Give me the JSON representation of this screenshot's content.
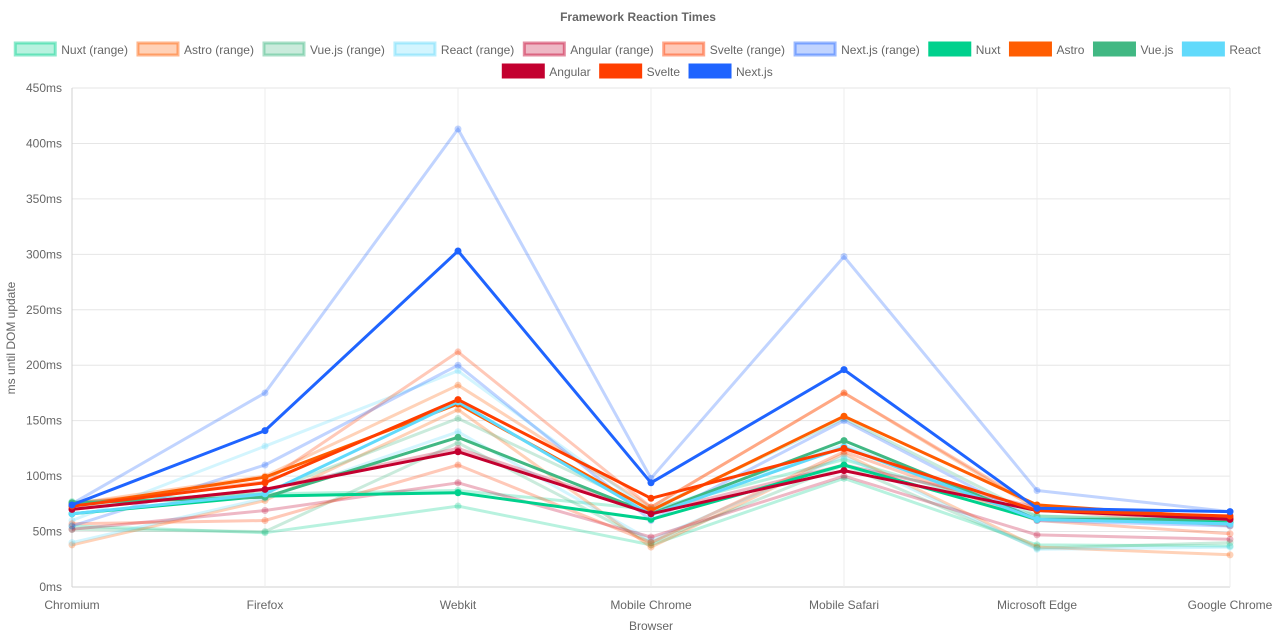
{
  "chart_data": {
    "type": "line",
    "title": "Framework Reaction Times",
    "xlabel": "Browser",
    "ylabel": "ms until DOM update",
    "ylim": [
      0,
      450
    ],
    "ytick_step": 50,
    "ytick_suffix": "ms",
    "grid": true,
    "legend_position": "top",
    "categories": [
      "Chromium",
      "Firefox",
      "Webkit",
      "Mobile Chrome",
      "Mobile Safari",
      "Microsoft Edge",
      "Google Chrome"
    ],
    "series": [
      {
        "name": "Nuxt (range)",
        "kind": "range",
        "color": "#00d18d",
        "min": [
          55,
          49,
          73,
          38,
          98,
          38,
          37
        ],
        "max": [
          77,
          84,
          87,
          70,
          115,
          64,
          58
        ]
      },
      {
        "name": "Astro (range)",
        "kind": "range",
        "color": "#ff5d01",
        "min": [
          38,
          78,
          160,
          36,
          120,
          36,
          29
        ],
        "max": [
          75,
          100,
          182,
          72,
          175,
          70,
          55
        ]
      },
      {
        "name": "Vue.js (range)",
        "kind": "range",
        "color": "#41b883",
        "min": [
          52,
          50,
          130,
          40,
          110,
          35,
          40
        ],
        "max": [
          73,
          85,
          152,
          70,
          152,
          64,
          60
        ]
      },
      {
        "name": "React (range)",
        "kind": "range",
        "color": "#61dafb",
        "min": [
          40,
          80,
          140,
          42,
          118,
          34,
          36
        ],
        "max": [
          60,
          127,
          195,
          68,
          128,
          62,
          56
        ]
      },
      {
        "name": "Angular (range)",
        "kind": "range",
        "color": "#c3002f",
        "min": [
          52,
          69,
          94,
          45,
          100,
          47,
          43
        ],
        "max": [
          70,
          88,
          125,
          67,
          110,
          72,
          62
        ]
      },
      {
        "name": "Svelte (range)",
        "kind": "range",
        "color": "#ff3e00",
        "min": [
          57,
          60,
          110,
          40,
          122,
          60,
          48
        ],
        "max": [
          75,
          95,
          212,
          72,
          175,
          72,
          62
        ]
      },
      {
        "name": "Next.js (range)",
        "kind": "range",
        "color": "#1f64ff",
        "min": [
          55,
          110,
          200,
          60,
          150,
          60,
          55
        ],
        "max": [
          75,
          175,
          413,
          98,
          298,
          87,
          68
        ]
      },
      {
        "name": "Nuxt",
        "kind": "line",
        "color": "#00d18d",
        "values": [
          66,
          82,
          85,
          61,
          110,
          61,
          58
        ]
      },
      {
        "name": "Astro",
        "kind": "line",
        "color": "#ff5d01",
        "values": [
          73,
          99,
          165,
          69,
          154,
          74,
          62
        ]
      },
      {
        "name": "Vue.js",
        "kind": "line",
        "color": "#41b883",
        "values": [
          76,
          81,
          135,
          66,
          132,
          61,
          61
        ]
      },
      {
        "name": "React",
        "kind": "line",
        "color": "#61dafb",
        "values": [
          66,
          84,
          167,
          65,
          126,
          61,
          57
        ]
      },
      {
        "name": "Angular",
        "kind": "line",
        "color": "#c3002f",
        "values": [
          70,
          88,
          122,
          66,
          105,
          69,
          61
        ]
      },
      {
        "name": "Svelte",
        "kind": "line",
        "color": "#ff3e00",
        "values": [
          73,
          94,
          169,
          80,
          125,
          69,
          64
        ]
      },
      {
        "name": "Next.js",
        "kind": "line",
        "color": "#1f64ff",
        "values": [
          74,
          141,
          303,
          94,
          196,
          71,
          68
        ]
      }
    ]
  }
}
